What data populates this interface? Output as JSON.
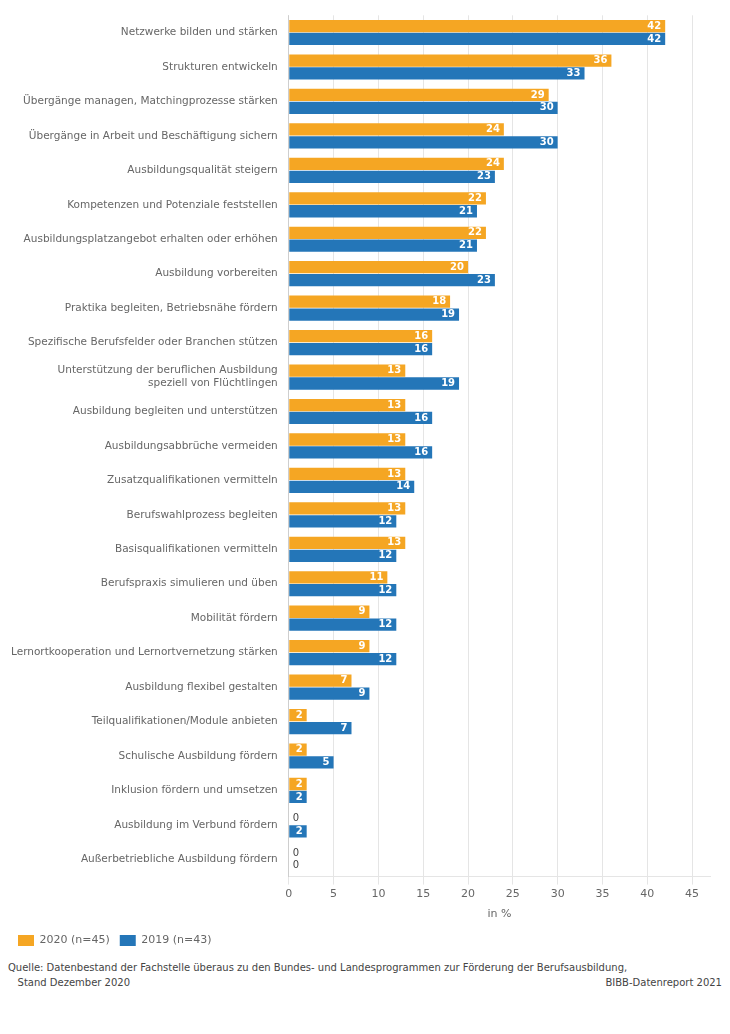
{
  "chart_data": {
    "type": "bar",
    "orientation": "horizontal",
    "categories": [
      "Netzwerke bilden und stärken",
      "Strukturen entwickeln",
      "Übergänge managen, Matchingprozesse stärken",
      "Übergänge in Arbeit und Beschäftigung sichern",
      "Ausbildungsqualität steigern",
      "Kompetenzen und Potenziale feststellen",
      "Ausbildungsplatzangebot erhalten oder erhöhen",
      "Ausbildung vorbereiten",
      "Praktika begleiten, Betriebsnähe fördern",
      "Spezifische Berufsfelder oder Branchen stützen",
      "Unterstützung der beruflichen Ausbildung\nspeziell von Flüchtlingen",
      "Ausbildung begleiten und unterstützen",
      "Ausbildungsabbrüche vermeiden",
      "Zusatzqualifikationen vermitteln",
      "Berufswahlprozess begleiten",
      "Basisqualifikationen vermitteln",
      "Berufspraxis simulieren und üben",
      "Mobilität fördern",
      "Lernortkooperation und Lernortvernetzung stärken",
      "Ausbildung flexibel gestalten",
      "Teilqualifikationen/Module anbieten",
      "Schulische Ausbildung fördern",
      "Inklusion fördern und umsetzen",
      "Ausbildung im Verbund fördern",
      "Außerbetriebliche Ausbildung fördern"
    ],
    "series": [
      {
        "name": "2020 (n=45)",
        "color": "#f5a623",
        "values": [
          42,
          36,
          29,
          24,
          24,
          22,
          22,
          20,
          18,
          16,
          13,
          13,
          13,
          13,
          13,
          13,
          11,
          9,
          9,
          7,
          2,
          2,
          2,
          0,
          0
        ]
      },
      {
        "name": "2019 (n=43)",
        "color": "#2476b8",
        "values": [
          42,
          33,
          30,
          30,
          23,
          21,
          21,
          23,
          19,
          16,
          19,
          16,
          16,
          14,
          12,
          12,
          12,
          12,
          12,
          9,
          7,
          5,
          2,
          2,
          0
        ]
      }
    ],
    "xlabel": "in %",
    "xlim": [
      0,
      47
    ],
    "xticks": [
      0,
      5,
      10,
      15,
      20,
      25,
      30,
      35,
      40,
      45
    ],
    "grid": true,
    "legend": "lower left",
    "data_labels": true,
    "annotations": [
      "Quelle: Datenbestand der Fachstelle überaus zu den Bundes- und Landesprogrammen zur Förderung der Berufsausbildung,",
      "   Stand Dezember 2020",
      "BIBB-Datenreport 2021"
    ]
  }
}
